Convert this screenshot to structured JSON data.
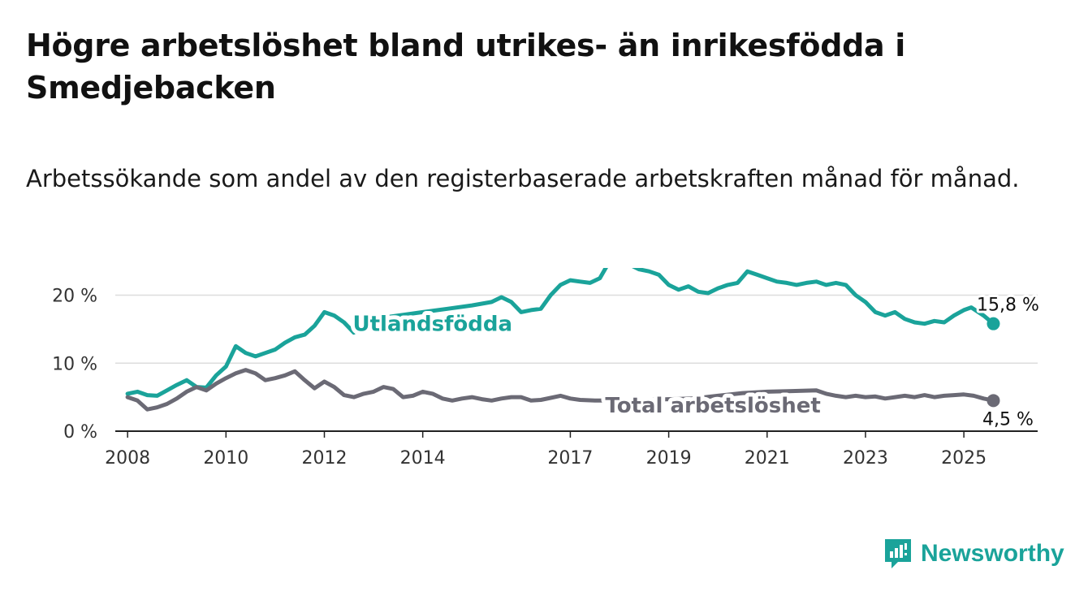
{
  "title": "Högre arbetslöshet bland utrikes- än inrikesfödda i Smedjebacken",
  "subtitle": "Arbetssökande som andel av den registerbaserade arbetskraften månad för månad.",
  "brand": {
    "name": "Newsworthy",
    "icon": "newsworthy-logo-icon"
  },
  "colors": {
    "foreign_born": "#1aa39a",
    "total": "#6b6a75",
    "grid": "#dddddd",
    "axis": "#222222"
  },
  "chart_data": {
    "type": "line",
    "x_unit": "year",
    "xlim": [
      2007.75,
      2026.5
    ],
    "ylim": [
      0,
      24
    ],
    "x_ticks": [
      2008,
      2010,
      2012,
      2014,
      2017,
      2019,
      2021,
      2023,
      2025
    ],
    "y_ticks": [
      {
        "value": 0,
        "label": "0 %"
      },
      {
        "value": 10,
        "label": "10 %"
      },
      {
        "value": 20,
        "label": "20 %"
      }
    ],
    "grid": true,
    "series": [
      {
        "name": "Utlandsfödda",
        "color": "#1aa39a",
        "end_label": "15,8 %",
        "points": [
          [
            2008.0,
            5.5
          ],
          [
            2008.2,
            5.8
          ],
          [
            2008.4,
            5.3
          ],
          [
            2008.6,
            5.2
          ],
          [
            2008.8,
            6.0
          ],
          [
            2009.0,
            6.8
          ],
          [
            2009.2,
            7.5
          ],
          [
            2009.4,
            6.5
          ],
          [
            2009.6,
            6.4
          ],
          [
            2009.8,
            8.2
          ],
          [
            2010.0,
            9.5
          ],
          [
            2010.2,
            12.5
          ],
          [
            2010.4,
            11.5
          ],
          [
            2010.6,
            11.0
          ],
          [
            2010.8,
            11.5
          ],
          [
            2011.0,
            12.0
          ],
          [
            2011.2,
            13.0
          ],
          [
            2011.4,
            13.8
          ],
          [
            2011.6,
            14.2
          ],
          [
            2011.8,
            15.5
          ],
          [
            2012.0,
            17.5
          ],
          [
            2012.2,
            17.0
          ],
          [
            2012.4,
            16.0
          ],
          [
            2012.6,
            14.5
          ],
          [
            2012.8,
            15.5
          ],
          [
            2013.0,
            16.5
          ],
          [
            2013.5,
            17.0
          ],
          [
            2014.0,
            17.5
          ],
          [
            2014.5,
            18.0
          ],
          [
            2015.0,
            18.5
          ],
          [
            2015.4,
            19.0
          ],
          [
            2015.6,
            19.7
          ],
          [
            2015.8,
            19.0
          ],
          [
            2016.0,
            17.5
          ],
          [
            2016.2,
            17.8
          ],
          [
            2016.4,
            18.0
          ],
          [
            2016.6,
            20.0
          ],
          [
            2016.8,
            21.5
          ],
          [
            2017.0,
            22.2
          ],
          [
            2017.2,
            22.0
          ],
          [
            2017.4,
            21.8
          ],
          [
            2017.6,
            22.5
          ],
          [
            2017.8,
            25.0
          ],
          [
            2018.0,
            25.3
          ],
          [
            2018.2,
            24.5
          ],
          [
            2018.4,
            23.8
          ],
          [
            2018.6,
            23.5
          ],
          [
            2018.8,
            23.0
          ],
          [
            2019.0,
            21.5
          ],
          [
            2019.2,
            20.8
          ],
          [
            2019.4,
            21.3
          ],
          [
            2019.6,
            20.5
          ],
          [
            2019.8,
            20.3
          ],
          [
            2020.0,
            21.0
          ],
          [
            2020.2,
            21.5
          ],
          [
            2020.4,
            21.8
          ],
          [
            2020.6,
            23.5
          ],
          [
            2020.8,
            23.0
          ],
          [
            2021.0,
            22.5
          ],
          [
            2021.2,
            22.0
          ],
          [
            2021.4,
            21.8
          ],
          [
            2021.6,
            21.5
          ],
          [
            2021.8,
            21.8
          ],
          [
            2022.0,
            22.0
          ],
          [
            2022.2,
            21.5
          ],
          [
            2022.4,
            21.8
          ],
          [
            2022.6,
            21.5
          ],
          [
            2022.8,
            20.0
          ],
          [
            2023.0,
            19.0
          ],
          [
            2023.2,
            17.5
          ],
          [
            2023.4,
            17.0
          ],
          [
            2023.6,
            17.5
          ],
          [
            2023.8,
            16.5
          ],
          [
            2024.0,
            16.0
          ],
          [
            2024.2,
            15.8
          ],
          [
            2024.4,
            16.2
          ],
          [
            2024.6,
            16.0
          ],
          [
            2024.8,
            17.0
          ],
          [
            2025.0,
            17.8
          ],
          [
            2025.15,
            18.2
          ],
          [
            2025.4,
            17.0
          ],
          [
            2025.6,
            15.8
          ]
        ]
      },
      {
        "name": "Total arbetslöshet",
        "color": "#6b6a75",
        "end_label": "4,5 %",
        "points": [
          [
            2008.0,
            5.0
          ],
          [
            2008.2,
            4.5
          ],
          [
            2008.4,
            3.2
          ],
          [
            2008.6,
            3.5
          ],
          [
            2008.8,
            4.0
          ],
          [
            2009.0,
            4.8
          ],
          [
            2009.2,
            5.8
          ],
          [
            2009.4,
            6.5
          ],
          [
            2009.6,
            6.0
          ],
          [
            2009.8,
            7.0
          ],
          [
            2010.0,
            7.8
          ],
          [
            2010.2,
            8.5
          ],
          [
            2010.4,
            9.0
          ],
          [
            2010.6,
            8.5
          ],
          [
            2010.8,
            7.5
          ],
          [
            2011.0,
            7.8
          ],
          [
            2011.2,
            8.2
          ],
          [
            2011.4,
            8.8
          ],
          [
            2011.6,
            7.5
          ],
          [
            2011.8,
            6.3
          ],
          [
            2012.0,
            7.3
          ],
          [
            2012.2,
            6.5
          ],
          [
            2012.4,
            5.3
          ],
          [
            2012.6,
            5.0
          ],
          [
            2012.8,
            5.5
          ],
          [
            2013.0,
            5.8
          ],
          [
            2013.2,
            6.5
          ],
          [
            2013.4,
            6.2
          ],
          [
            2013.6,
            5.0
          ],
          [
            2013.8,
            5.2
          ],
          [
            2014.0,
            5.8
          ],
          [
            2014.2,
            5.5
          ],
          [
            2014.4,
            4.8
          ],
          [
            2014.6,
            4.5
          ],
          [
            2014.8,
            4.8
          ],
          [
            2015.0,
            5.0
          ],
          [
            2015.2,
            4.7
          ],
          [
            2015.4,
            4.5
          ],
          [
            2015.6,
            4.8
          ],
          [
            2015.8,
            5.0
          ],
          [
            2016.0,
            5.0
          ],
          [
            2016.2,
            4.5
          ],
          [
            2016.4,
            4.6
          ],
          [
            2016.6,
            4.9
          ],
          [
            2016.8,
            5.2
          ],
          [
            2017.0,
            4.8
          ],
          [
            2017.2,
            4.6
          ],
          [
            2017.5,
            4.5
          ],
          [
            2018.0,
            4.5
          ],
          [
            2018.5,
            4.6
          ],
          [
            2019.0,
            4.7
          ],
          [
            2019.5,
            4.8
          ],
          [
            2020.0,
            5.2
          ],
          [
            2020.5,
            5.6
          ],
          [
            2021.0,
            5.8
          ],
          [
            2021.5,
            5.9
          ],
          [
            2022.0,
            6.0
          ],
          [
            2022.2,
            5.5
          ],
          [
            2022.4,
            5.2
          ],
          [
            2022.6,
            5.0
          ],
          [
            2022.8,
            5.2
          ],
          [
            2023.0,
            5.0
          ],
          [
            2023.2,
            5.1
          ],
          [
            2023.4,
            4.8
          ],
          [
            2023.6,
            5.0
          ],
          [
            2023.8,
            5.2
          ],
          [
            2024.0,
            5.0
          ],
          [
            2024.2,
            5.3
          ],
          [
            2024.4,
            5.0
          ],
          [
            2024.6,
            5.2
          ],
          [
            2024.8,
            5.3
          ],
          [
            2025.0,
            5.4
          ],
          [
            2025.2,
            5.2
          ],
          [
            2025.4,
            4.8
          ],
          [
            2025.6,
            4.5
          ]
        ]
      }
    ]
  }
}
